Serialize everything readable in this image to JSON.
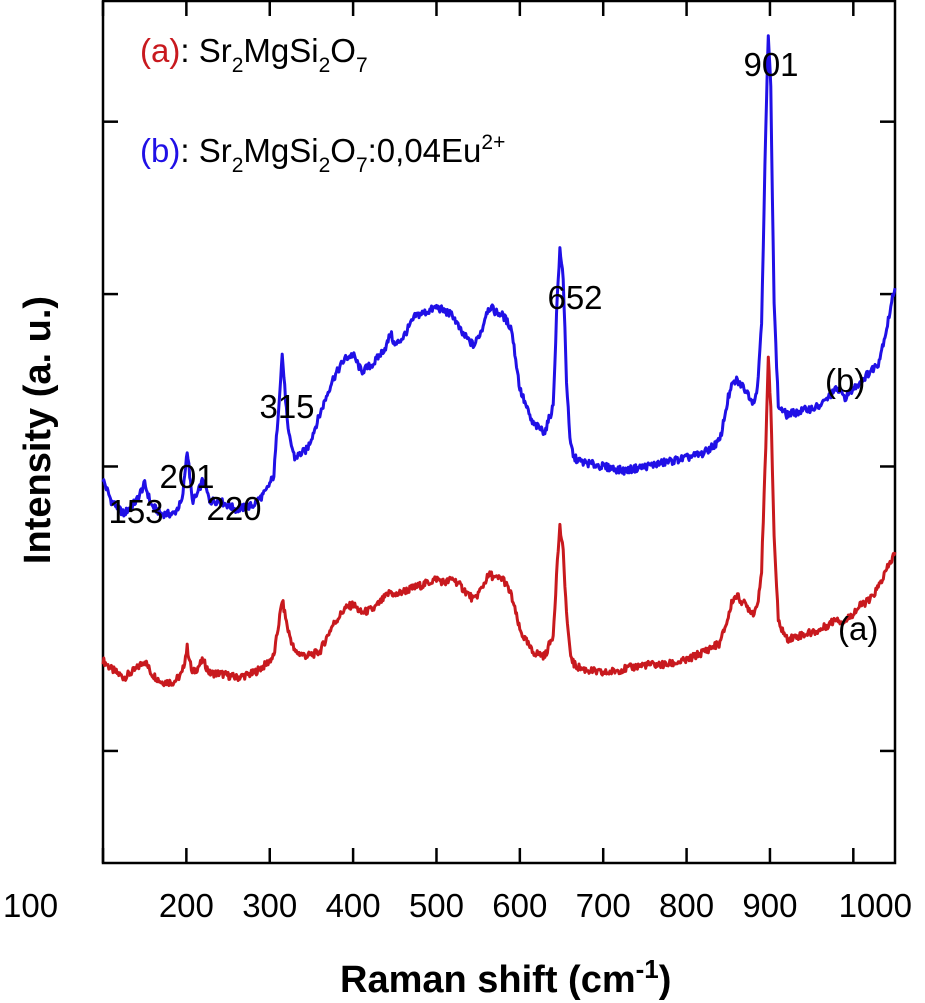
{
  "chart_data": {
    "type": "line",
    "xlabel_main": "Raman shift (cm",
    "xlabel_sup": "-1",
    "xlabel_end": ")",
    "ylabel": "Intensity (a. u.)",
    "xlim": [
      100,
      1050
    ],
    "x_ticks": [
      100,
      200,
      300,
      400,
      500,
      600,
      700,
      800,
      900,
      1000
    ],
    "ylim": [
      0,
      1
    ],
    "y_tick_values": [
      0.13,
      0.46,
      0.66,
      0.86
    ],
    "yticks_labeled": false,
    "grid": false,
    "legend": [
      {
        "tag_open": "(",
        "tag_letter": "a",
        "tag_close": ")",
        "formula": [
          {
            "t": ": Sr",
            "s": ""
          },
          {
            "t": "2",
            "s": "sub"
          },
          {
            "t": "MgSi",
            "s": ""
          },
          {
            "t": "2",
            "s": "sub"
          },
          {
            "t": "O",
            "s": ""
          },
          {
            "t": "7",
            "s": "sub"
          }
        ]
      },
      {
        "tag_open": "(",
        "tag_letter": "b",
        "tag_close": ")",
        "formula": [
          {
            "t": ": Sr",
            "s": ""
          },
          {
            "t": "2",
            "s": "sub"
          },
          {
            "t": "MgSi",
            "s": ""
          },
          {
            "t": "2",
            "s": "sub"
          },
          {
            "t": "O",
            "s": ""
          },
          {
            "t": "7",
            "s": "sub"
          },
          {
            "t": ":0,04Eu",
            "s": ""
          },
          {
            "t": "2+",
            "s": "sup"
          }
        ]
      }
    ],
    "series": [
      {
        "tag": "(a)",
        "color": "#c8191e",
        "x": [
          100,
          110,
          125,
          140,
          150,
          158,
          170,
          185,
          195,
          201,
          207,
          212,
          220,
          228,
          240,
          260,
          280,
          295,
          305,
          315,
          322,
          330,
          345,
          360,
          375,
          390,
          400,
          410,
          425,
          440,
          445,
          450,
          460,
          475,
          490,
          500,
          510,
          520,
          530,
          545,
          555,
          560,
          565,
          570,
          580,
          590,
          600,
          615,
          630,
          640,
          645,
          648,
          652,
          656,
          660,
          665,
          675,
          700,
          725,
          750,
          775,
          800,
          820,
          840,
          850,
          855,
          860,
          870,
          880,
          885,
          890,
          895,
          898,
          901,
          905,
          910,
          920,
          940,
          960,
          975,
          980,
          985,
          990,
          1000,
          1010,
          1020,
          1030,
          1040,
          1050
        ],
        "y": [
          0.235,
          0.225,
          0.215,
          0.225,
          0.235,
          0.22,
          0.21,
          0.21,
          0.22,
          0.25,
          0.22,
          0.225,
          0.235,
          0.22,
          0.22,
          0.215,
          0.22,
          0.23,
          0.24,
          0.305,
          0.27,
          0.245,
          0.24,
          0.245,
          0.275,
          0.295,
          0.3,
          0.29,
          0.295,
          0.31,
          0.315,
          0.31,
          0.315,
          0.32,
          0.325,
          0.33,
          0.325,
          0.33,
          0.32,
          0.305,
          0.32,
          0.33,
          0.335,
          0.33,
          0.33,
          0.31,
          0.27,
          0.245,
          0.24,
          0.265,
          0.35,
          0.39,
          0.36,
          0.29,
          0.245,
          0.23,
          0.225,
          0.22,
          0.225,
          0.23,
          0.23,
          0.235,
          0.245,
          0.255,
          0.285,
          0.305,
          0.31,
          0.3,
          0.29,
          0.3,
          0.34,
          0.48,
          0.59,
          0.53,
          0.38,
          0.28,
          0.26,
          0.265,
          0.27,
          0.28,
          0.285,
          0.28,
          0.28,
          0.29,
          0.3,
          0.305,
          0.32,
          0.34,
          0.36
        ]
      },
      {
        "tag": "(b)",
        "color": "#2010e6",
        "x": [
          100,
          110,
          125,
          140,
          150,
          158,
          170,
          185,
          195,
          201,
          207,
          212,
          220,
          228,
          240,
          260,
          280,
          295,
          305,
          315,
          322,
          330,
          345,
          360,
          375,
          390,
          400,
          410,
          425,
          440,
          445,
          450,
          460,
          475,
          490,
          500,
          510,
          520,
          530,
          545,
          555,
          560,
          565,
          570,
          580,
          590,
          600,
          615,
          630,
          640,
          645,
          648,
          652,
          656,
          660,
          665,
          675,
          700,
          725,
          750,
          775,
          800,
          820,
          840,
          850,
          855,
          860,
          870,
          880,
          885,
          890,
          895,
          898,
          901,
          905,
          910,
          920,
          940,
          960,
          975,
          980,
          985,
          990,
          1000,
          1010,
          1020,
          1030,
          1040,
          1050
        ],
        "y": [
          0.445,
          0.42,
          0.405,
          0.42,
          0.44,
          0.415,
          0.405,
          0.405,
          0.42,
          0.48,
          0.42,
          0.425,
          0.445,
          0.42,
          0.42,
          0.41,
          0.415,
          0.43,
          0.45,
          0.59,
          0.5,
          0.47,
          0.48,
          0.52,
          0.56,
          0.585,
          0.59,
          0.57,
          0.58,
          0.6,
          0.615,
          0.6,
          0.61,
          0.635,
          0.64,
          0.645,
          0.64,
          0.635,
          0.615,
          0.6,
          0.62,
          0.64,
          0.645,
          0.64,
          0.635,
          0.62,
          0.55,
          0.51,
          0.5,
          0.53,
          0.66,
          0.71,
          0.68,
          0.56,
          0.49,
          0.47,
          0.465,
          0.46,
          0.455,
          0.46,
          0.465,
          0.47,
          0.475,
          0.49,
          0.54,
          0.555,
          0.56,
          0.55,
          0.535,
          0.55,
          0.63,
          0.85,
          0.96,
          0.9,
          0.65,
          0.53,
          0.52,
          0.525,
          0.53,
          0.545,
          0.55,
          0.545,
          0.54,
          0.55,
          0.56,
          0.57,
          0.58,
          0.62,
          0.67
        ]
      }
    ],
    "annotations": [
      {
        "text": "153",
        "x": 153
      },
      {
        "text": "201",
        "x": 201
      },
      {
        "text": "220",
        "x": 220
      },
      {
        "text": "315",
        "x": 315
      },
      {
        "text": "652",
        "x": 652
      },
      {
        "text": "901",
        "x": 901
      }
    ]
  }
}
